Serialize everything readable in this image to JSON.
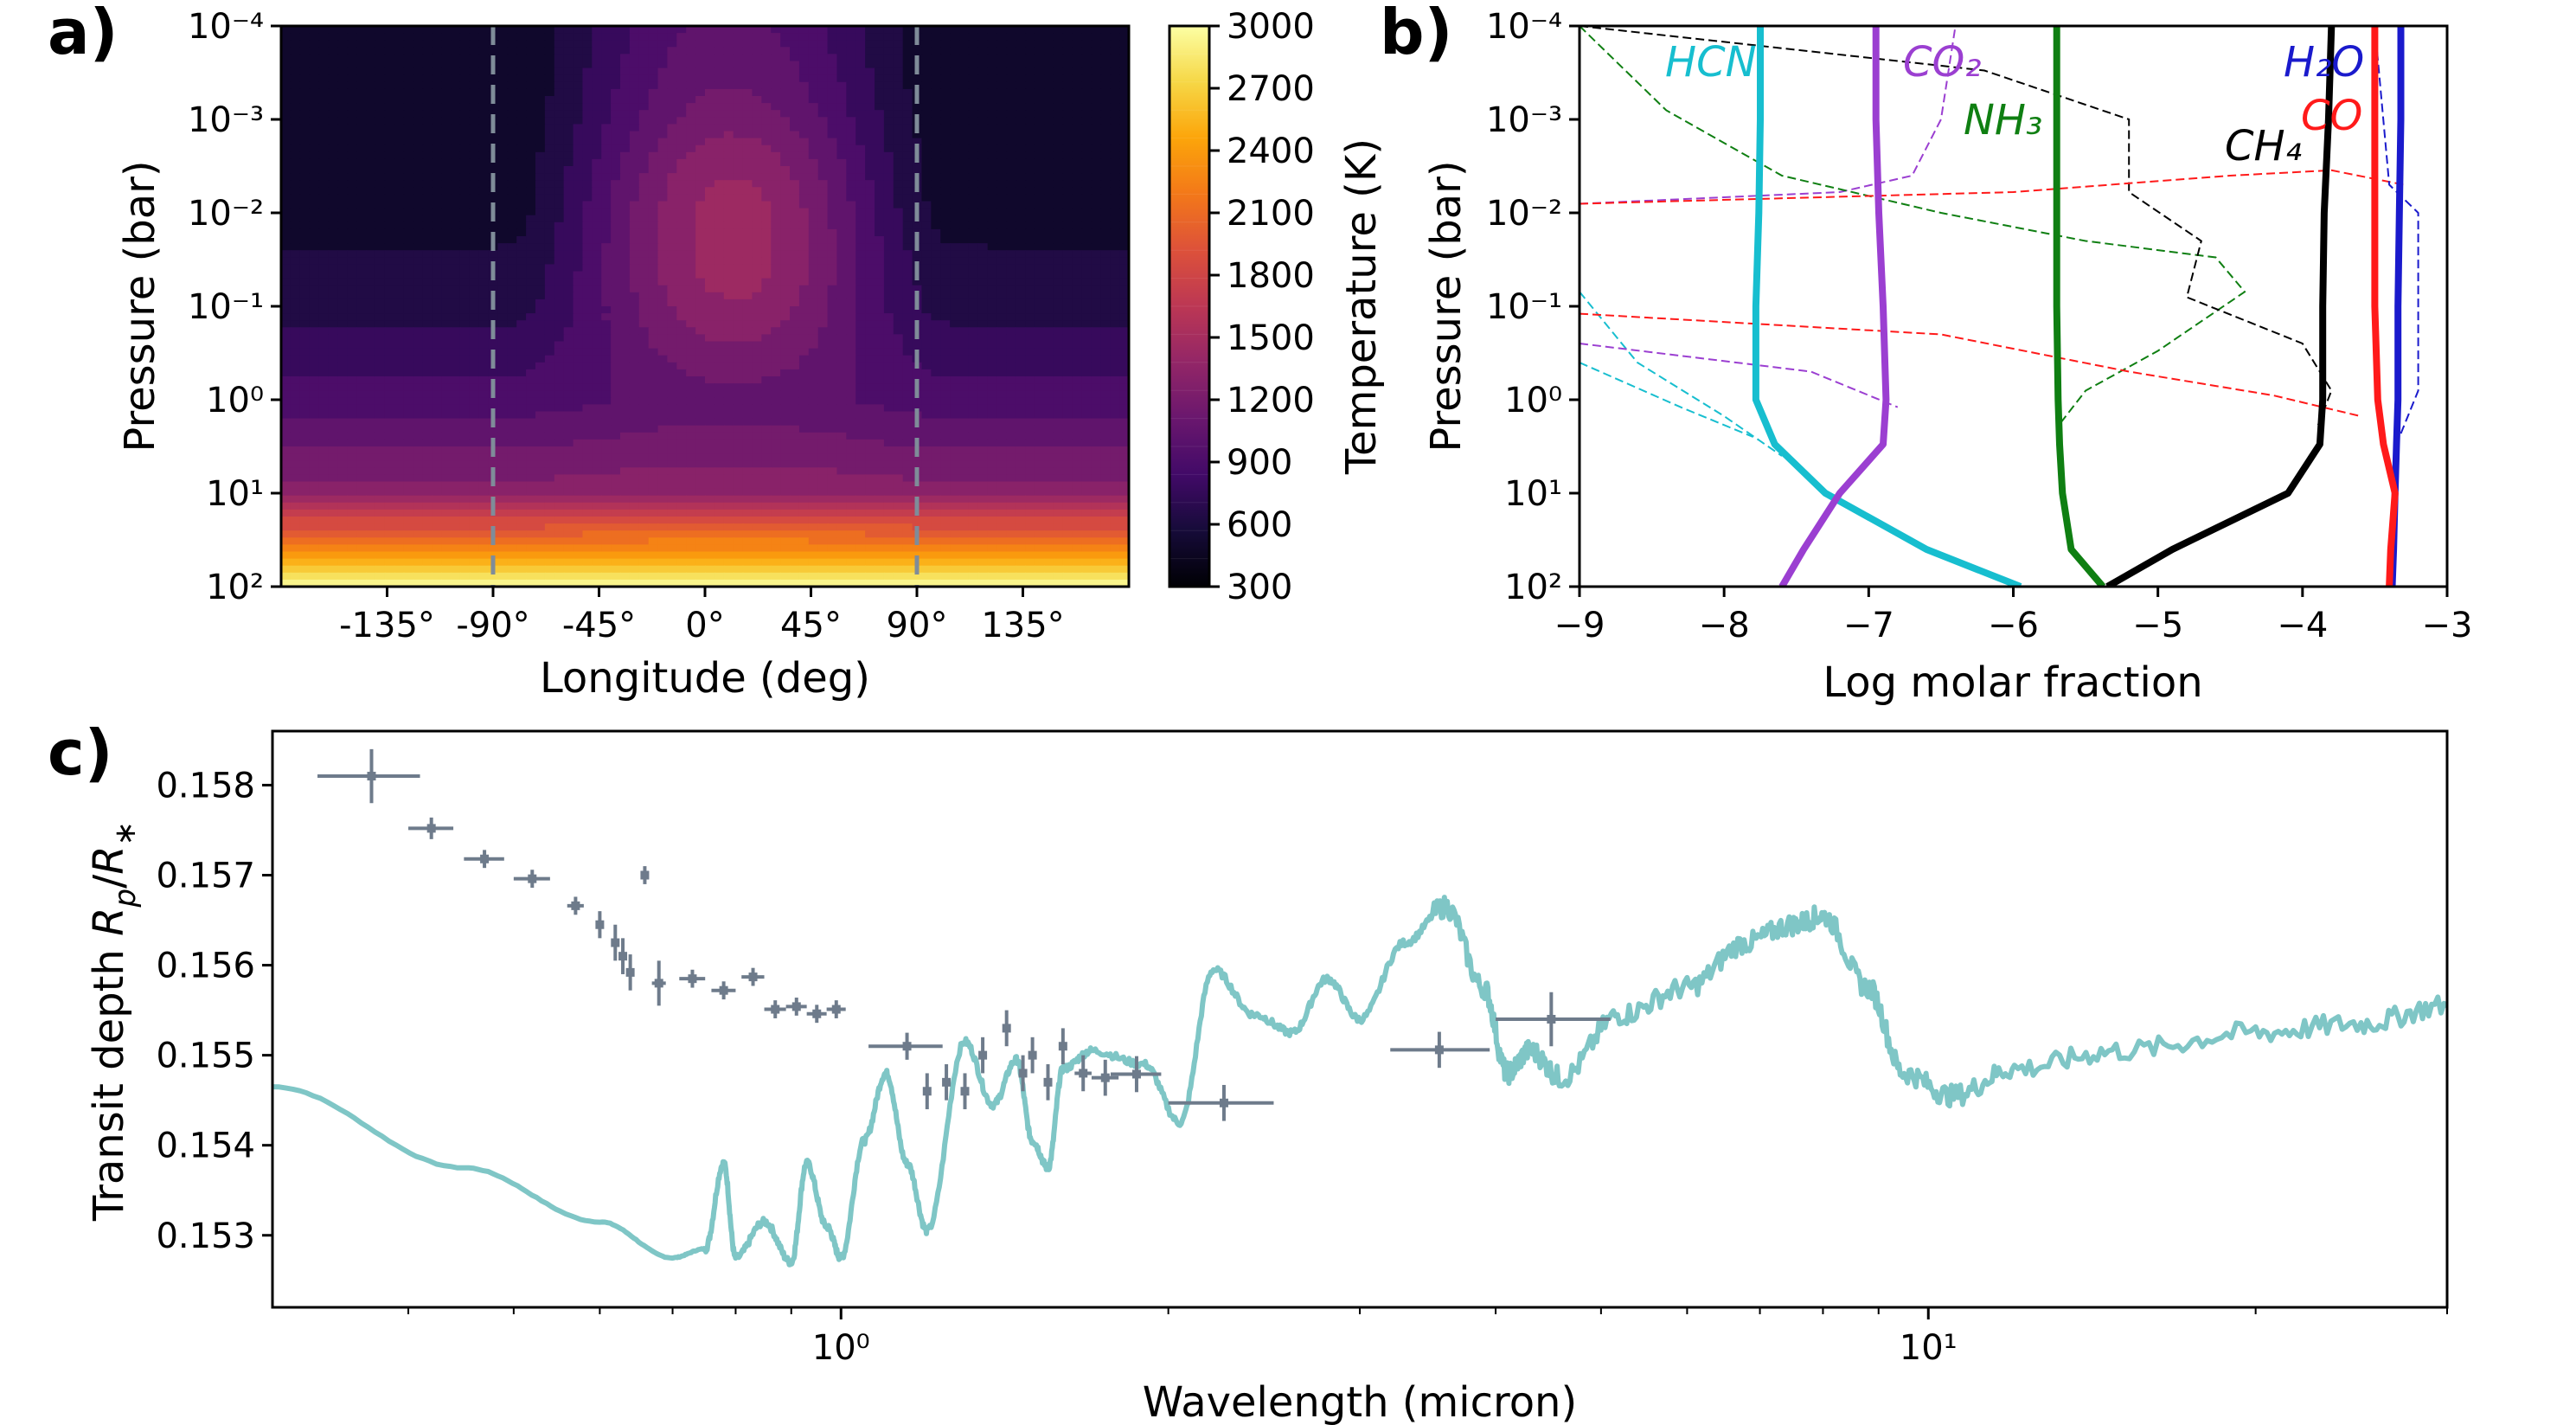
{
  "panels": {
    "a": {
      "letter": "a)",
      "xlabel": "Longitude (deg)",
      "ylabel": "Pressure (bar)",
      "colorbar_label": "Temperature (K)",
      "x_ticks": [
        "-135°",
        "-90°",
        "-45°",
        "0°",
        "45°",
        "90°",
        "135°"
      ],
      "y_ticks": [
        "10⁻⁴",
        "10⁻³",
        "10⁻²",
        "10⁻¹",
        "10⁰",
        "10¹",
        "10²"
      ],
      "colorbar_ticks": [
        "3000",
        "2700",
        "2400",
        "2100",
        "1800",
        "1500",
        "1200",
        "900",
        "600",
        "300"
      ]
    },
    "b": {
      "letter": "b)",
      "xlabel": "Log molar fraction",
      "ylabel": "Pressure (bar)",
      "x_ticks": [
        "−9",
        "−8",
        "−7",
        "−6",
        "−5",
        "−4",
        "−3"
      ],
      "y_ticks": [
        "10⁻⁴",
        "10⁻³",
        "10⁻²",
        "10⁻¹",
        "10⁰",
        "10¹",
        "10²"
      ]
    },
    "c": {
      "letter": "c)",
      "xlabel": "Wavelength (micron)",
      "ylabel": "Transit depth R_p/R_*",
      "x_ticks": [
        "10⁰",
        "10¹"
      ],
      "y_ticks": [
        "0.153",
        "0.154",
        "0.155",
        "0.156",
        "0.157",
        "0.158"
      ]
    }
  },
  "chart_data": [
    {
      "type": "heatmap",
      "xlabel": "Longitude (deg)",
      "ylabel": "Pressure (bar)",
      "xlim": [
        -180,
        180
      ],
      "ylim": [
        100,
        0.0001
      ],
      "y_scale": "log",
      "colorbar": {
        "label": "Temperature (K)",
        "range": [
          300,
          3000
        ],
        "colormap": "inferno"
      },
      "dashed_lines_at_longitude": [
        -90,
        90
      ],
      "dashed_line_color": "#7f8c99",
      "temperature_profile_by_pressure": [
        {
          "pressure": 0.0001,
          "nightside": 450,
          "dayside": 1000
        },
        {
          "pressure": 0.001,
          "nightside": 480,
          "dayside": 1080
        },
        {
          "pressure": 0.01,
          "nightside": 520,
          "dayside": 1250
        },
        {
          "pressure": 0.1,
          "nightside": 650,
          "dayside": 1150
        },
        {
          "pressure": 1,
          "nightside": 900,
          "dayside": 1000
        },
        {
          "pressure": 10,
          "nightside": 1300,
          "dayside": 1350
        },
        {
          "pressure": 100,
          "nightside": 3000,
          "dayside": 3000
        }
      ],
      "hotspot": {
        "longitude": 15,
        "pressure": 0.02,
        "temperature": 1450
      }
    },
    {
      "type": "line",
      "xlabel": "Log molar fraction",
      "ylabel": "Pressure (bar)",
      "xlim": [
        -9,
        -3
      ],
      "ylim": [
        100,
        0.0001
      ],
      "y_scale": "log",
      "series": [
        {
          "name": "HCN",
          "color": "#17becf",
          "style": "solid",
          "x": [
            -7.75,
            -7.75,
            -7.76,
            -7.78,
            -7.78,
            -7.65,
            -7.3,
            -6.6,
            -5.95
          ],
          "y": [
            0.0001,
            0.001,
            0.01,
            0.1,
            1,
            3,
            10,
            40,
            100
          ]
        },
        {
          "name": "CO2",
          "color": "#9b3fd1",
          "style": "solid",
          "x": [
            -6.95,
            -6.95,
            -6.93,
            -6.9,
            -6.88,
            -6.9,
            -7.2,
            -7.45,
            -7.6
          ],
          "y": [
            0.0001,
            0.001,
            0.01,
            0.1,
            1,
            3,
            10,
            40,
            100
          ]
        },
        {
          "name": "NH3",
          "color": "#0f7f12",
          "style": "solid",
          "x": [
            -5.7,
            -5.7,
            -5.7,
            -5.7,
            -5.69,
            -5.68,
            -5.66,
            -5.6,
            -5.38
          ],
          "y": [
            0.0001,
            0.001,
            0.01,
            0.1,
            1,
            3,
            10,
            40,
            100
          ]
        },
        {
          "name": "CH4",
          "color": "#000000",
          "style": "solid",
          "x": [
            -3.8,
            -3.82,
            -3.85,
            -3.86,
            -3.86,
            -3.88,
            -4.1,
            -4.9,
            -5.35
          ],
          "y": [
            0.0001,
            0.001,
            0.01,
            0.1,
            1,
            3,
            10,
            40,
            100
          ]
        },
        {
          "name": "H2O",
          "color": "#1a1acc",
          "style": "solid",
          "x": [
            -3.32,
            -3.32,
            -3.33,
            -3.34,
            -3.34,
            -3.35,
            -3.36,
            -3.37,
            -3.38
          ],
          "y": [
            0.0001,
            0.001,
            0.01,
            0.1,
            1,
            3,
            10,
            40,
            100
          ]
        },
        {
          "name": "CO",
          "color": "#ff1a1a",
          "style": "solid",
          "x": [
            -3.5,
            -3.5,
            -3.5,
            -3.5,
            -3.48,
            -3.44,
            -3.36,
            -3.39,
            -3.4
          ],
          "y": [
            0.0001,
            0.001,
            0.01,
            0.1,
            1,
            3,
            10,
            40,
            100
          ]
        }
      ],
      "annotations": [
        "HCN",
        "CO₂",
        "NH₃",
        "CH₄",
        "H₂O",
        "CO"
      ]
    },
    {
      "type": "line",
      "xlabel": "Wavelength (micron)",
      "ylabel": "Transit depth R_p/R_*",
      "x_scale": "log",
      "xlim": [
        0.3,
        30
      ],
      "ylim": [
        0.1522,
        0.1586
      ],
      "model_color": "#7fc6c6",
      "model_spectrum": {
        "x": [
          0.3,
          0.45,
          0.6,
          0.7,
          0.75,
          0.78,
          0.8,
          0.85,
          0.9,
          0.93,
          0.97,
          1.0,
          1.05,
          1.1,
          1.15,
          1.2,
          1.3,
          1.38,
          1.45,
          1.5,
          1.55,
          1.6,
          1.7,
          1.9,
          2.05,
          2.2,
          2.4,
          2.6,
          2.8,
          3.0,
          3.3,
          3.6,
          3.9,
          4.1,
          4.3,
          4.6,
          5.2,
          6.0,
          6.8,
          7.5,
          8.0,
          8.8,
          9.5,
          10.5,
          12,
          15,
          20,
          25,
          30
        ],
        "y": [
          0.15465,
          0.15375,
          0.15315,
          0.15275,
          0.15285,
          0.1538,
          0.15275,
          0.15315,
          0.1527,
          0.1538,
          0.1531,
          0.15275,
          0.15405,
          0.1548,
          0.1538,
          0.15305,
          0.15515,
          0.15445,
          0.15495,
          0.15405,
          0.15375,
          0.15485,
          0.15505,
          0.1549,
          0.15425,
          0.15595,
          0.15545,
          0.15525,
          0.15585,
          0.1554,
          0.15625,
          0.15665,
          0.15575,
          0.1548,
          0.15505,
          0.15475,
          0.15545,
          0.15575,
          0.15625,
          0.15645,
          0.15655,
          0.15575,
          0.1548,
          0.15455,
          0.15485,
          0.15505,
          0.15525,
          0.15535,
          0.15555
        ]
      },
      "observations": {
        "color": "#6e7b8b",
        "x": [
          0.37,
          0.42,
          0.47,
          0.52,
          0.57,
          0.6,
          0.62,
          0.63,
          0.64,
          0.66,
          0.68,
          0.73,
          0.78,
          0.83,
          0.87,
          0.91,
          0.95,
          0.99,
          1.15,
          1.2,
          1.25,
          1.3,
          1.35,
          1.42,
          1.47,
          1.5,
          1.55,
          1.6,
          1.67,
          1.75,
          1.87,
          2.25,
          3.55,
          4.5
        ],
        "y": [
          0.1581,
          0.15752,
          0.15718,
          0.15696,
          0.15666,
          0.15645,
          0.15625,
          0.1561,
          0.15592,
          0.157,
          0.1558,
          0.15585,
          0.15572,
          0.15587,
          0.15551,
          0.15554,
          0.15546,
          0.15551,
          0.1551,
          0.1546,
          0.1547,
          0.1546,
          0.155,
          0.1553,
          0.1548,
          0.155,
          0.1547,
          0.1551,
          0.1548,
          0.15475,
          0.15479,
          0.15447,
          0.15506,
          0.1554
        ],
        "yerr": [
          0.0003,
          0.00012,
          0.0001,
          0.0001,
          0.0001,
          0.00015,
          0.0002,
          0.0002,
          0.0002,
          0.0001,
          0.00025,
          0.0001,
          0.0001,
          0.0001,
          0.0001,
          0.0001,
          0.0001,
          0.0001,
          0.00015,
          0.0002,
          0.0002,
          0.0002,
          0.0002,
          0.0002,
          0.0002,
          0.0002,
          0.0002,
          0.0002,
          0.0002,
          0.0002,
          0.0002,
          0.0002,
          0.0002,
          0.0003
        ],
        "xerr_lo": [
          0.04,
          0.02,
          0.02,
          0.02,
          0.01,
          0.005,
          0.005,
          0.005,
          0.005,
          0.005,
          0.01,
          0.02,
          0.02,
          0.02,
          0.02,
          0.02,
          0.02,
          0.02,
          0.09,
          0.01,
          0.01,
          0.01,
          0.01,
          0.01,
          0.01,
          0.01,
          0.01,
          0.01,
          0.03,
          0.05,
          0.1,
          0.25,
          0.35,
          0.5
        ],
        "xerr_hi": [
          0.04,
          0.02,
          0.02,
          0.02,
          0.01,
          0.005,
          0.005,
          0.005,
          0.005,
          0.005,
          0.01,
          0.02,
          0.02,
          0.02,
          0.02,
          0.02,
          0.02,
          0.02,
          0.09,
          0.01,
          0.01,
          0.01,
          0.01,
          0.01,
          0.01,
          0.01,
          0.01,
          0.01,
          0.03,
          0.05,
          0.1,
          0.25,
          0.4,
          0.6
        ]
      }
    }
  ]
}
